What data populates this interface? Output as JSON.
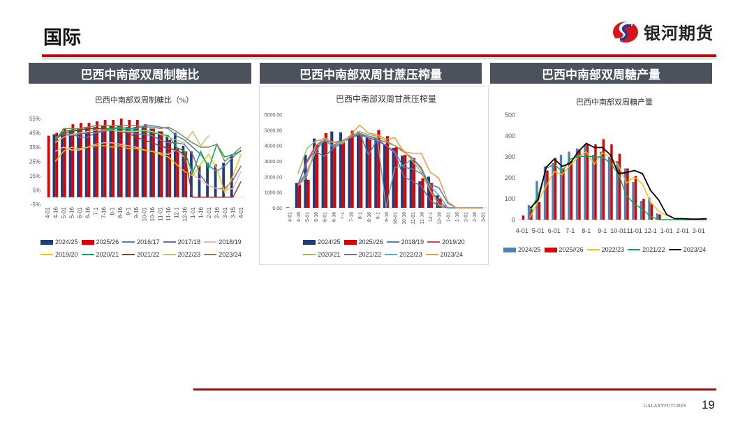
{
  "header": {
    "title": "国际",
    "logo_text": "银河期货"
  },
  "sections": [
    {
      "label": "巴西中南部双周制糖比"
    },
    {
      "label": "巴西中南部双周甘蔗压榨量"
    },
    {
      "label": "巴西中南部双周糖产量"
    }
  ],
  "footer": {
    "brand": "GALAXYFUTURES",
    "page": "19"
  },
  "chart_data": [
    {
      "type": "bar",
      "title": "巴西中南部双周制糖比（%）",
      "ylim": [
        -5,
        55
      ],
      "yticks": [
        55,
        45,
        35,
        25,
        15,
        5,
        -5
      ],
      "ytick_labels": [
        "55%",
        "45%",
        "35%",
        "25%",
        "15%",
        "5%",
        "-5%"
      ],
      "categories": [
        "4-01",
        "4-16",
        "5-01",
        "5-16",
        "6-01",
        "6-16",
        "7-1",
        "7-16",
        "8-1",
        "8-16",
        "9-1",
        "9-16",
        "10-01",
        "10-16",
        "11-01",
        "11-16",
        "12-1",
        "12-16",
        "1-01",
        "1-16",
        "2-01",
        "2-16",
        "3-01",
        "3-15",
        "4-01"
      ],
      "bars": [
        {
          "name": "2024/25",
          "color": "#1f3d7a",
          "values": [
            null,
            44,
            46,
            47,
            48,
            49,
            49,
            50,
            50,
            50,
            49,
            49,
            49,
            48,
            46,
            43,
            45,
            36,
            32,
            22,
            24,
            23,
            24,
            30,
            null
          ]
        },
        {
          "name": "2025/26",
          "color": "#e00000",
          "values": [
            43,
            45,
            48,
            51,
            52,
            52,
            53,
            54,
            54,
            55,
            54,
            54,
            51,
            48,
            46,
            40,
            34,
            32,
            null,
            null,
            null,
            null,
            null,
            null,
            null
          ]
        }
      ],
      "lines": [
        {
          "name": "2016/17",
          "color": "#4f81bd",
          "values": [
            null,
            42,
            44,
            44,
            42,
            42,
            45,
            47,
            48,
            49,
            48,
            48,
            50,
            50,
            49,
            48,
            43,
            40,
            35,
            30,
            22,
            18,
            22,
            28,
            33
          ]
        },
        {
          "name": "2017/18",
          "color": "#8064a2",
          "values": [
            null,
            40,
            45,
            43,
            44,
            45,
            45,
            46,
            47,
            46,
            46,
            44,
            44,
            43,
            40,
            38,
            38,
            37,
            30,
            15,
            8,
            6,
            6,
            12,
            22
          ]
        },
        {
          "name": "2018/19",
          "color": "#e6b9b8",
          "values": [
            null,
            32,
            35,
            33,
            33,
            35,
            37,
            38,
            38,
            37,
            36,
            35,
            33,
            32,
            31,
            30,
            33,
            28,
            16,
            12,
            8,
            6,
            5,
            6,
            18
          ]
        },
        {
          "name": "2019/20",
          "color": "#ffc000",
          "values": [
            null,
            25,
            32,
            35,
            34,
            35,
            36,
            36,
            35,
            36,
            34,
            34,
            33,
            32,
            30,
            28,
            23,
            18,
            15,
            23,
            30,
            20,
            3,
            15,
            30
          ]
        },
        {
          "name": "2020/21",
          "color": "#00b050",
          "values": [
            null,
            41,
            46,
            47,
            47,
            48,
            48,
            48,
            48,
            48,
            47,
            47,
            46,
            45,
            44,
            43,
            35,
            32,
            17,
            32,
            20,
            37,
            28,
            30,
            32
          ]
        },
        {
          "name": "2021/22",
          "color": "#943634",
          "values": [
            null,
            40,
            45,
            46,
            47,
            48,
            48,
            48,
            47,
            46,
            45,
            42,
            40,
            38,
            36,
            34,
            33,
            30,
            0,
            0,
            0,
            0,
            0,
            0,
            11
          ]
        },
        {
          "name": "2022/23",
          "color": "#b4cc6a",
          "values": [
            null,
            38,
            42,
            44,
            45,
            46,
            47,
            47,
            47,
            46,
            46,
            46,
            47,
            46,
            44,
            42,
            40,
            38,
            46,
            36,
            43,
            null,
            null,
            null,
            null
          ]
        },
        {
          "name": "2023/24",
          "color": "#8a8450",
          "values": [
            null,
            39,
            48,
            48,
            48,
            49,
            50,
            50,
            50,
            50,
            50,
            50,
            49,
            49,
            48,
            49,
            46,
            42,
            38,
            35,
            35,
            37,
            25,
            30,
            35
          ]
        }
      ]
    },
    {
      "type": "bar",
      "title": "巴西中南部双周甘蔗压榨量",
      "ylim": [
        0,
        6000
      ],
      "yticks": [
        6000,
        5000,
        4000,
        3000,
        2000,
        1000,
        0
      ],
      "ytick_labels": [
        "6000.00",
        "5000.00",
        "4000.00",
        "3000.00",
        "2000.00",
        "1000.00",
        "0.00"
      ],
      "categories": [
        "4-01",
        "4-16",
        "5-01",
        "5-16",
        "6-01",
        "6-16",
        "7-1",
        "7-16",
        "8-1",
        "8-16",
        "9-1",
        "9-16",
        "10-01",
        "10-16",
        "11-01",
        "11-16",
        "12-1",
        "12-16",
        "1-01",
        "1-16",
        "2-01",
        "2-16",
        "3-01"
      ],
      "bars": [
        {
          "name": "2024/25",
          "color": "#1f3d7a",
          "values": [
            30,
            1600,
            3400,
            4450,
            4300,
            4900,
            4850,
            4600,
            4900,
            4500,
            4450,
            4100,
            3850,
            3350,
            3050,
            1700,
            2000,
            800,
            100,
            0,
            0,
            0,
            0
          ]
        },
        {
          "name": "2025//26",
          "color": "#e00000",
          "values": [
            null,
            1500,
            1800,
            4100,
            4800,
            4000,
            4200,
            4950,
            4700,
            4400,
            5000,
            4600,
            3900,
            3400,
            3200,
            1900,
            1600,
            600,
            null,
            null,
            null,
            null,
            null
          ]
        }
      ],
      "lines": [
        {
          "name": "2018/19",
          "color": "#4f81bd",
          "values": [
            null,
            1500,
            2300,
            3600,
            3300,
            3800,
            4200,
            4500,
            4800,
            3400,
            4400,
            4000,
            3600,
            2600,
            2500,
            2200,
            1500,
            1300,
            300,
            0,
            0,
            0,
            0
          ]
        },
        {
          "name": "2019/20",
          "color": "#c0504d",
          "values": [
            null,
            1500,
            2900,
            3800,
            4300,
            4000,
            4300,
            4500,
            4700,
            4600,
            4400,
            4200,
            4000,
            3600,
            3200,
            2500,
            1200,
            400,
            0,
            0,
            0,
            0,
            0
          ]
        },
        {
          "name": "2020/21",
          "color": "#9bbb59",
          "values": [
            null,
            2200,
            3800,
            4300,
            4400,
            4200,
            4200,
            4600,
            4900,
            4700,
            4600,
            4300,
            4000,
            3700,
            3000,
            2300,
            1100,
            200,
            0,
            0,
            0,
            0,
            0
          ]
        },
        {
          "name": "2021/22",
          "color": "#8064a2",
          "values": [
            null,
            1500,
            3000,
            4000,
            4300,
            4200,
            4300,
            4600,
            4700,
            4500,
            4300,
            4000,
            3500,
            2000,
            1700,
            1400,
            500,
            100,
            0,
            0,
            0,
            0,
            0
          ]
        },
        {
          "name": "2022/23",
          "color": "#4bacc6",
          "values": [
            null,
            1400,
            2200,
            3600,
            4400,
            3900,
            4300,
            4600,
            4800,
            4600,
            4500,
            0,
            2600,
            2700,
            3200,
            2600,
            1400,
            800,
            0,
            0,
            0,
            0,
            0
          ]
        },
        {
          "name": "2023/24",
          "color": "#f79646",
          "values": [
            null,
            1400,
            2000,
            4000,
            4500,
            4200,
            4100,
            4700,
            5300,
            4800,
            4700,
            4400,
            4500,
            3600,
            3500,
            3500,
            2300,
            1900,
            400,
            0,
            0,
            0,
            0
          ]
        }
      ]
    },
    {
      "type": "bar",
      "title": "巴西中南部双周糖产量",
      "ylim": [
        0,
        500
      ],
      "yticks": [
        500,
        400,
        300,
        200,
        100,
        0
      ],
      "ytick_labels": [
        "500",
        "400",
        "300",
        "200",
        "100",
        "0"
      ],
      "categories": [
        "4-01",
        "4-16",
        "5-01",
        "5-16",
        "6-01",
        "6-16",
        "7-1",
        "7-16",
        "8-1",
        "8-16",
        "9-1",
        "9-16",
        "10-01",
        "10-16",
        "11-01",
        "11-16",
        "12-1",
        "12-16",
        "1-01",
        "1-16",
        "2-01",
        "2-16",
        "3-01",
        "3-16"
      ],
      "xtick_labels_shown": [
        "4-01",
        "5-01",
        "6-01",
        "7-1",
        "8-1",
        "9-1",
        "10-01",
        "11-01",
        "12-1",
        "1-01",
        "2-01",
        "3-01"
      ],
      "bars": [
        {
          "name": "2024/25",
          "color": "#4f81bd",
          "values": [
            null,
            70,
            185,
            255,
            270,
            310,
            325,
            340,
            360,
            310,
            325,
            300,
            280,
            245,
            180,
            90,
            105,
            30,
            null,
            null,
            null,
            null,
            null,
            null
          ]
        },
        {
          "name": "2025//26",
          "color": "#e00000",
          "values": [
            20,
            50,
            85,
            235,
            295,
            245,
            280,
            335,
            360,
            360,
            385,
            360,
            315,
            245,
            210,
            100,
            75,
            25,
            null,
            null,
            null,
            null,
            null,
            null
          ]
        }
      ],
      "lines": [
        {
          "name": "2022/23",
          "color": "#ffc000",
          "values": [
            null,
            10,
            90,
            160,
            230,
            215,
            260,
            300,
            325,
            265,
            320,
            300,
            260,
            175,
            205,
            170,
            85,
            40,
            20,
            5,
            0,
            0,
            0,
            0
          ]
        },
        {
          "name": "2021/22",
          "color": "#00b050",
          "values": [
            null,
            40,
            115,
            245,
            265,
            230,
            290,
            300,
            305,
            300,
            300,
            270,
            220,
            115,
            75,
            50,
            15,
            0,
            0,
            0,
            0,
            0,
            0,
            0
          ]
        },
        {
          "name": "2023/24",
          "color": "#000000",
          "values": [
            null,
            55,
            95,
            250,
            290,
            255,
            270,
            325,
            365,
            345,
            345,
            310,
            220,
            225,
            235,
            220,
            140,
            95,
            25,
            5,
            5,
            3,
            3,
            5
          ]
        }
      ]
    }
  ]
}
